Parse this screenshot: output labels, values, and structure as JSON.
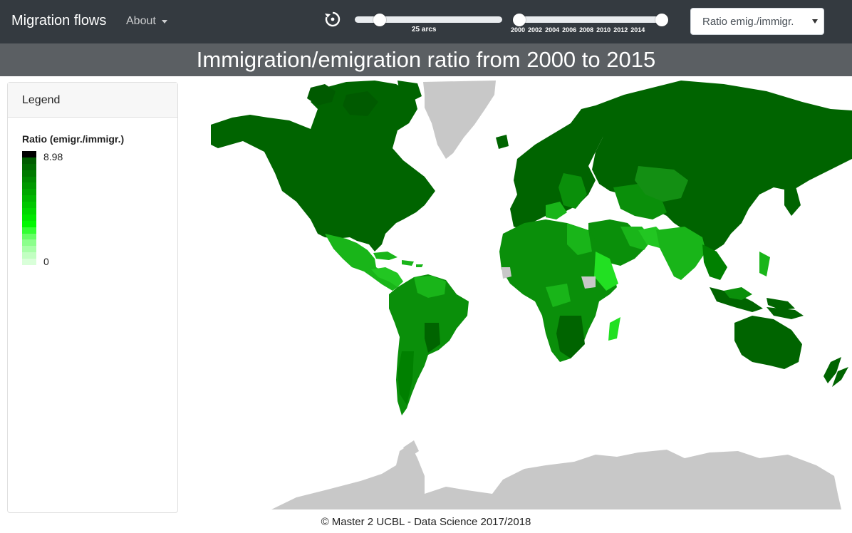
{
  "navbar": {
    "brand": "Migration flows",
    "about_label": "About",
    "reset_icon": "history-reset-icon",
    "arcs_label": "25 arcs",
    "arcs_value": 25,
    "year_ticks": [
      "2000",
      "2002",
      "2004",
      "2006",
      "2008",
      "2010",
      "2012",
      "2014"
    ],
    "year_range": [
      2000,
      2015
    ],
    "select_value": "Ratio emig./immigr."
  },
  "title": "Immigration/emigration ratio from 2000 to 2015",
  "legend": {
    "header": "Legend",
    "title": "Ratio (emigr./immigr.)",
    "max_label": "8.98",
    "min_label": "0",
    "colors": [
      "#000000",
      "#005c00",
      "#006b00",
      "#007a00",
      "#008a00",
      "#009900",
      "#00a800",
      "#00b800",
      "#00c800",
      "#00d800",
      "#00e800",
      "#00f800",
      "#33ff33",
      "#66ff66",
      "#8cff8c",
      "#a8ffa8",
      "#c2ffc2",
      "#d9ffd9"
    ]
  },
  "map": {
    "colors": {
      "dark": "#006400",
      "mid": "#0a8f0a",
      "light": "#19b519",
      "bright": "#22e022",
      "no_data": "#c8c8c8"
    }
  },
  "footer": "© Master 2 UCBL - Data Science 2017/2018"
}
